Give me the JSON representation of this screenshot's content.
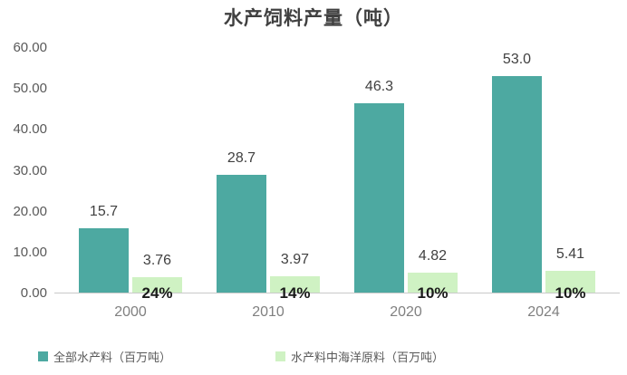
{
  "title": "水产饲料产量（吨）",
  "chart_data": {
    "type": "bar",
    "title": "水产饲料产量（吨）",
    "categories": [
      "2000",
      "2010",
      "2020",
      "2024"
    ],
    "series": [
      {
        "name": "全部水产料（百万吨）",
        "color": "#4DA9A1",
        "values": [
          15.7,
          28.7,
          46.3,
          53.0
        ],
        "labels": [
          "15.7",
          "28.7",
          "46.3",
          "53.0"
        ]
      },
      {
        "name": "水产料中海洋原料（百万吨）",
        "color": "#CFF2C3",
        "values": [
          3.76,
          3.97,
          4.82,
          5.41
        ],
        "labels": [
          "3.76",
          "3.97",
          "4.82",
          "5.41"
        ]
      }
    ],
    "percent_labels": [
      "24%",
      "14%",
      "10%",
      "10%"
    ],
    "ylim": [
      0,
      60
    ],
    "ytick_labels": [
      "0.00",
      "10.00",
      "20.00",
      "30.00",
      "40.00",
      "50.00",
      "60.00"
    ],
    "grid": false,
    "legend_position": "bottom"
  },
  "colors": {
    "total_bar": "#4DA9A1",
    "marine_bar": "#CFF2C3",
    "axis_line": "#C9C9C9",
    "title_text": "#404040",
    "ytick_text": "#595959",
    "category_text": "#808080",
    "value_text": "#404040",
    "percent_text": "#1A1A1A"
  }
}
